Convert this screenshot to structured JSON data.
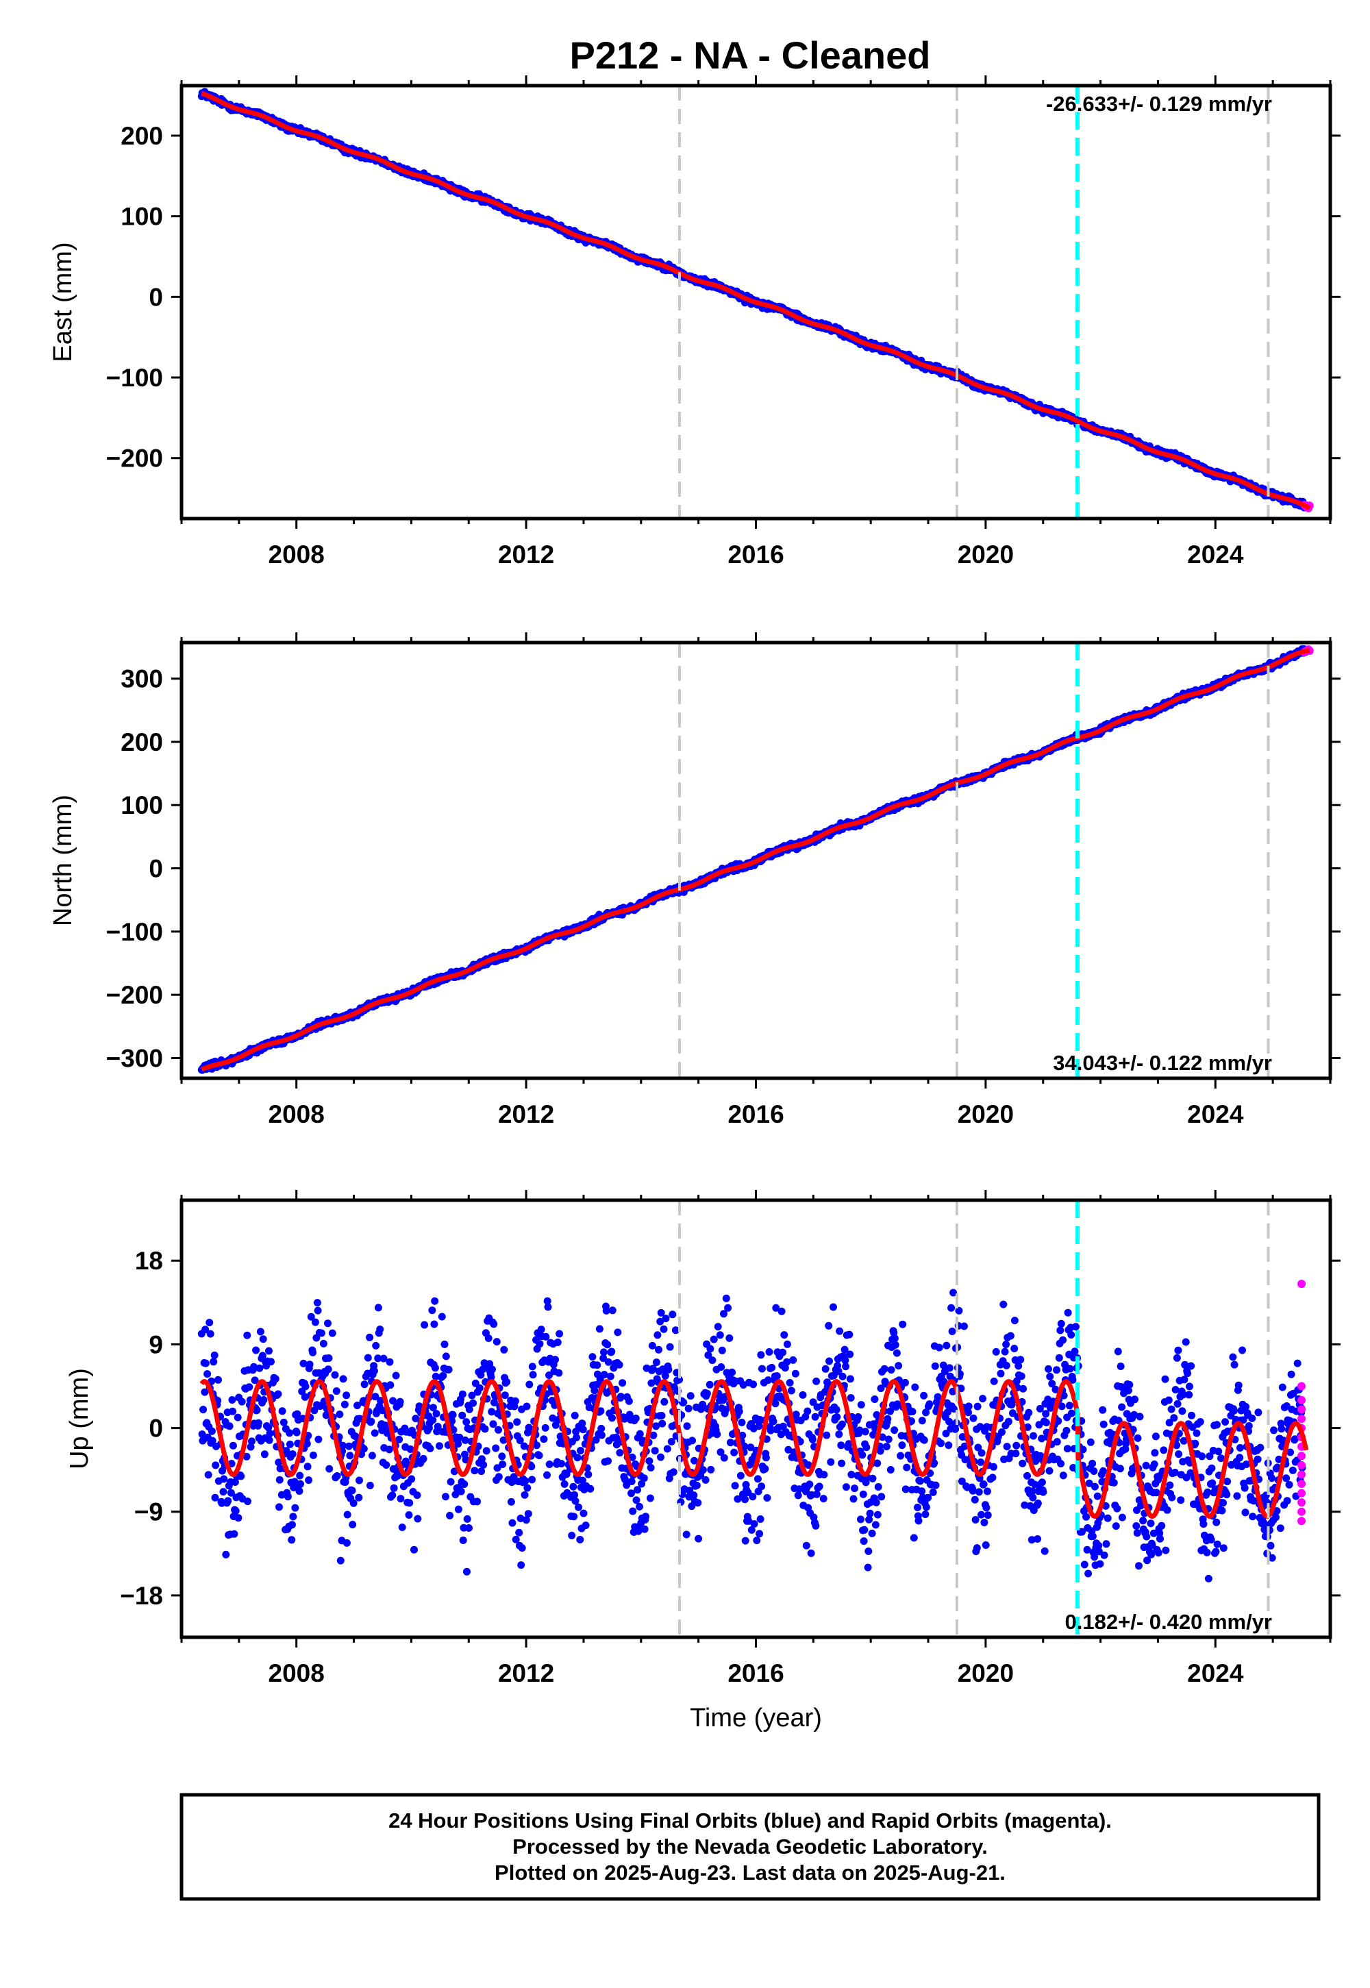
{
  "title": "P212  - NA - Cleaned",
  "footer": {
    "lines": [
      "24 Hour Positions Using Final Orbits (blue) and Rapid Orbits (magenta).",
      "Processed by the Nevada Geodetic Laboratory.",
      "Plotted on 2025-Aug-23. Last data on 2025-Aug-21."
    ]
  },
  "colors": {
    "final_orbits": "#0000ff",
    "rapid_orbits": "#ff00ff",
    "model_fit": "#ff0000",
    "equipment_change": "#c8c8c8",
    "earthquake": "#00ffff"
  },
  "chart_data": [
    {
      "type": "scatter",
      "panel": "east",
      "ylabel": "East (mm)",
      "xlabel": "",
      "xlim": [
        2006.0,
        2026.0
      ],
      "ylim": [
        -275,
        262
      ],
      "xticks": [
        2008,
        2012,
        2016,
        2020,
        2024
      ],
      "xtick_labels": [
        "2008",
        "2012",
        "2016",
        "2020",
        "2024"
      ],
      "yticks": [
        -200,
        -100,
        0,
        100,
        200
      ],
      "ytick_labels": [
        "−200",
        "−100",
        "0",
        "100",
        "200"
      ],
      "rate_label": "-26.633+/- 0.129 mm/yr",
      "rate_position": "top-right",
      "data_span": [
        2006.35,
        2025.64
      ],
      "trend": {
        "start": [
          2006.35,
          251
        ],
        "end": [
          2025.64,
          -262
        ]
      },
      "seasonal_amplitude": 1.5,
      "scatter_noise": 2,
      "steps": [],
      "rapid_points": [
        [
          2025.55,
          -258
        ],
        [
          2025.58,
          -260
        ],
        [
          2025.6,
          -261
        ],
        [
          2025.62,
          -262
        ],
        [
          2025.64,
          -259
        ]
      ],
      "vlines_gray": [
        2014.67,
        2019.5,
        2024.92
      ],
      "vline_cyan": 2021.6,
      "series": [
        {
          "name": "Final Orbits (blue)",
          "color": "#0000ff"
        },
        {
          "name": "Rapid Orbits (magenta)",
          "color": "#ff00ff"
        }
      ]
    },
    {
      "type": "scatter",
      "panel": "north",
      "ylabel": "North (mm)",
      "xlabel": "",
      "xlim": [
        2006.0,
        2026.0
      ],
      "ylim": [
        -332,
        357
      ],
      "xticks": [
        2008,
        2012,
        2016,
        2020,
        2024
      ],
      "xtick_labels": [
        "2008",
        "2012",
        "2016",
        "2020",
        "2024"
      ],
      "yticks": [
        -300,
        -200,
        -100,
        0,
        100,
        200,
        300
      ],
      "ytick_labels": [
        "−300",
        "−200",
        "−100",
        "0",
        "100",
        "200",
        "300"
      ],
      "rate_label": "34.043+/- 0.122 mm/yr",
      "rate_position": "bottom-right",
      "data_span": [
        2006.35,
        2025.64
      ],
      "trend": {
        "start": [
          2006.35,
          -320
        ],
        "end": [
          2025.64,
          345
        ]
      },
      "seasonal_amplitude": 2,
      "scatter_noise": 2.5,
      "steps": [],
      "rapid_points": [
        [
          2025.55,
          342
        ],
        [
          2025.58,
          344
        ],
        [
          2025.6,
          345
        ],
        [
          2025.62,
          346
        ],
        [
          2025.64,
          344
        ]
      ],
      "vlines_gray": [
        2014.67,
        2019.5,
        2024.92
      ],
      "vline_cyan": 2021.6,
      "series": [
        {
          "name": "Final Orbits (blue)",
          "color": "#0000ff"
        },
        {
          "name": "Rapid Orbits (magenta)",
          "color": "#ff00ff"
        }
      ]
    },
    {
      "type": "scatter",
      "panel": "up",
      "ylabel": "Up (mm)",
      "xlabel": "Time (year)",
      "xlim": [
        2006.0,
        2026.0
      ],
      "ylim": [
        -22.5,
        24.5
      ],
      "xticks": [
        2008,
        2012,
        2016,
        2020,
        2024
      ],
      "xtick_labels": [
        "2008",
        "2012",
        "2016",
        "2020",
        "2024"
      ],
      "yticks": [
        -18,
        -9,
        0,
        9,
        18
      ],
      "ytick_labels": [
        "−18",
        "−9",
        "0",
        "9",
        "18"
      ],
      "rate_label": "0.182+/- 0.420 mm/yr",
      "rate_position": "bottom-right",
      "data_span": [
        2006.35,
        2025.58
      ],
      "trend": {
        "start": [
          2006.35,
          0
        ],
        "end": [
          2025.58,
          0
        ]
      },
      "seasonal_amplitude": 5,
      "scatter_noise": 4,
      "steps": [
        {
          "year": 2021.6,
          "offset": -4.5
        }
      ],
      "rapid_points": [
        [
          2025.5,
          15.5
        ],
        [
          2025.5,
          4.5
        ],
        [
          2025.5,
          3
        ],
        [
          2025.5,
          2
        ],
        [
          2025.5,
          1
        ],
        [
          2025.5,
          0
        ],
        [
          2025.5,
          -1
        ],
        [
          2025.5,
          -2
        ],
        [
          2025.5,
          -3
        ],
        [
          2025.5,
          -4
        ],
        [
          2025.5,
          -5
        ],
        [
          2025.5,
          -6
        ],
        [
          2025.5,
          -7
        ],
        [
          2025.5,
          -8
        ],
        [
          2025.5,
          -9
        ],
        [
          2025.5,
          -10
        ]
      ],
      "vlines_gray": [
        2014.67,
        2019.5,
        2024.92
      ],
      "vline_cyan": 2021.6,
      "series": [
        {
          "name": "Final Orbits (blue)",
          "color": "#0000ff"
        },
        {
          "name": "Rapid Orbits (magenta)",
          "color": "#ff00ff"
        }
      ]
    }
  ]
}
